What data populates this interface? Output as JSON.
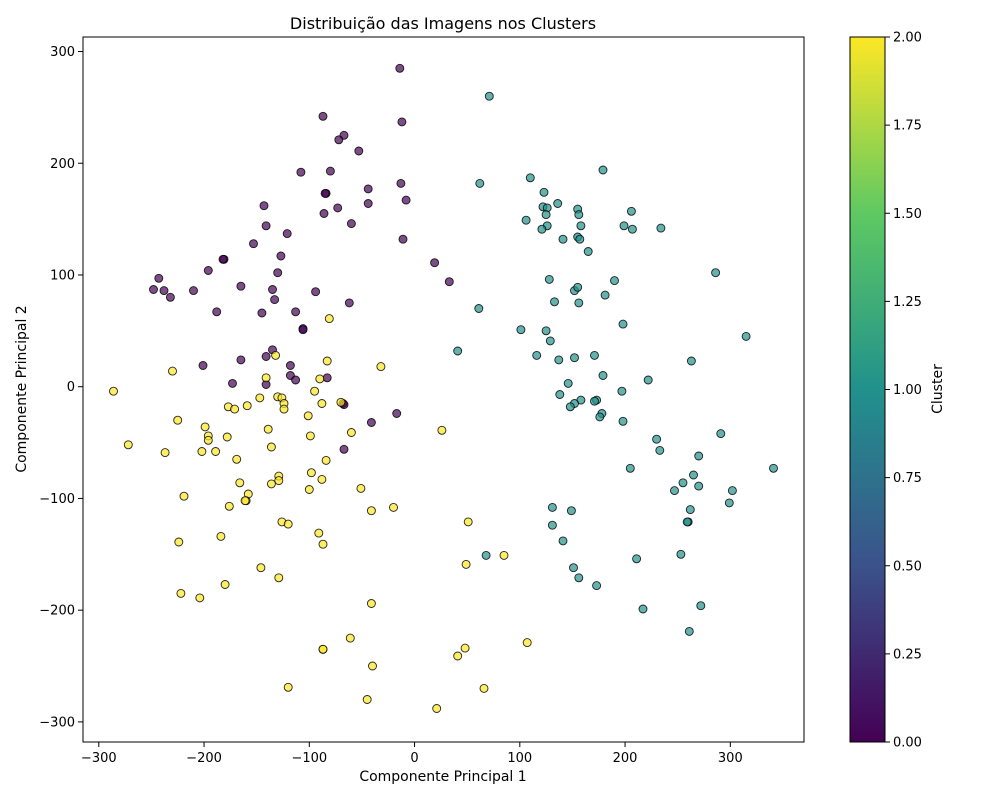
{
  "chart_data": {
    "type": "scatter",
    "title": "Distribuição das Imagens nos Clusters",
    "xlabel": "Componente Principal 1",
    "ylabel": "Componente Principal 2",
    "xlim": [
      -315,
      370
    ],
    "ylim": [
      -318,
      313
    ],
    "xticks": [
      -300,
      -200,
      -100,
      0,
      100,
      200,
      300
    ],
    "yticks": [
      -300,
      -200,
      -100,
      0,
      100,
      200,
      300
    ],
    "xtick_labels": [
      "−300",
      "−200",
      "−100",
      "0",
      "100",
      "200",
      "300"
    ],
    "ytick_labels": [
      "−300",
      "−200",
      "−100",
      "0",
      "100",
      "200",
      "300"
    ],
    "grid": false,
    "point_alpha": 0.7,
    "colorbar": {
      "label": "Cluster",
      "range": [
        0,
        2
      ],
      "ticks": [
        0.0,
        0.25,
        0.5,
        0.75,
        1.0,
        1.25,
        1.5,
        1.75,
        2.0
      ],
      "tick_labels": [
        "0.00",
        "0.25",
        "0.50",
        "0.75",
        "1.00",
        "1.25",
        "1.50",
        "1.75",
        "2.00"
      ],
      "colormap": "viridis",
      "colors": [
        "#440154",
        "#3b528b",
        "#21918c",
        "#5ec962",
        "#fde725"
      ]
    },
    "clusters": [
      {
        "cluster": 0,
        "color": "#440154",
        "points": [
          [
            -14,
            285
          ],
          [
            -87,
            242
          ],
          [
            -12,
            237
          ],
          [
            -67,
            225
          ],
          [
            -72,
            221
          ],
          [
            -53,
            211
          ],
          [
            -108,
            192
          ],
          [
            -80,
            193
          ],
          [
            -13,
            182
          ],
          [
            -44,
            177
          ],
          [
            -84,
            173
          ],
          [
            -85,
            173
          ],
          [
            -8,
            167
          ],
          [
            -44,
            164
          ],
          [
            -143,
            162
          ],
          [
            -73,
            160
          ],
          [
            -86,
            155
          ],
          [
            -60,
            146
          ],
          [
            -141,
            144
          ],
          [
            -121,
            137
          ],
          [
            -11,
            132
          ],
          [
            -153,
            128
          ],
          [
            -127,
            117
          ],
          [
            -181,
            114
          ],
          [
            -182,
            114
          ],
          [
            -196,
            104
          ],
          [
            -130,
            102
          ],
          [
            19,
            111
          ],
          [
            -243,
            97
          ],
          [
            33,
            94
          ],
          [
            -248,
            87
          ],
          [
            -238,
            86
          ],
          [
            -210,
            86
          ],
          [
            -165,
            90
          ],
          [
            -135,
            87
          ],
          [
            -94,
            85
          ],
          [
            -232,
            80
          ],
          [
            -133,
            78
          ],
          [
            -62,
            75
          ],
          [
            -188,
            67
          ],
          [
            -113,
            67
          ],
          [
            -145,
            66
          ],
          [
            -106,
            52
          ],
          [
            -106,
            51
          ],
          [
            -135,
            33
          ],
          [
            -141,
            27
          ],
          [
            -165,
            24
          ],
          [
            -201,
            19
          ],
          [
            -118,
            19
          ],
          [
            -118,
            10
          ],
          [
            -113,
            6
          ],
          [
            -83,
            8
          ],
          [
            -173,
            3
          ],
          [
            -141,
            2
          ],
          [
            -68,
            -15
          ],
          [
            -67,
            -16
          ],
          [
            -17,
            -24
          ],
          [
            -41,
            -32
          ],
          [
            -67,
            -56
          ]
        ]
      },
      {
        "cluster": 1,
        "color": "#21918c",
        "points": [
          [
            71,
            260
          ],
          [
            179,
            194
          ],
          [
            110,
            187
          ],
          [
            62,
            182
          ],
          [
            123,
            174
          ],
          [
            136,
            164
          ],
          [
            122,
            161
          ],
          [
            126,
            160
          ],
          [
            155,
            159
          ],
          [
            206,
            157
          ],
          [
            125,
            154
          ],
          [
            156,
            154
          ],
          [
            106,
            149
          ],
          [
            199,
            144
          ],
          [
            158,
            144
          ],
          [
            126,
            144
          ],
          [
            121,
            141
          ],
          [
            207,
            141
          ],
          [
            234,
            142
          ],
          [
            155,
            134
          ],
          [
            157,
            132
          ],
          [
            141,
            132
          ],
          [
            165,
            121
          ],
          [
            128,
            96
          ],
          [
            190,
            95
          ],
          [
            152,
            86
          ],
          [
            155,
            89
          ],
          [
            181,
            82
          ],
          [
            286,
            102
          ],
          [
            133,
            76
          ],
          [
            156,
            75
          ],
          [
            61,
            70
          ],
          [
            198,
            56
          ],
          [
            101,
            51
          ],
          [
            125,
            50
          ],
          [
            315,
            45
          ],
          [
            41,
            32
          ],
          [
            129,
            41
          ],
          [
            116,
            28
          ],
          [
            152,
            26
          ],
          [
            171,
            28
          ],
          [
            263,
            23
          ],
          [
            137,
            24
          ],
          [
            179,
            10
          ],
          [
            222,
            6
          ],
          [
            146,
            3
          ],
          [
            197,
            -4
          ],
          [
            138,
            -7
          ],
          [
            173,
            -12
          ],
          [
            158,
            -12
          ],
          [
            171,
            -13
          ],
          [
            152,
            -15
          ],
          [
            148,
            -18
          ],
          [
            178,
            -24
          ],
          [
            176,
            -27
          ],
          [
            198,
            -31
          ],
          [
            291,
            -42
          ],
          [
            230,
            -47
          ],
          [
            233,
            -57
          ],
          [
            270,
            -62
          ],
          [
            205,
            -73
          ],
          [
            341,
            -73
          ],
          [
            265,
            -79
          ],
          [
            270,
            -89
          ],
          [
            255,
            -86
          ],
          [
            247,
            -93
          ],
          [
            302,
            -93
          ],
          [
            299,
            -104
          ],
          [
            131,
            -108
          ],
          [
            149,
            -111
          ],
          [
            262,
            -110
          ],
          [
            260,
            -121
          ],
          [
            259,
            -121
          ],
          [
            131,
            -124
          ],
          [
            141,
            -138
          ],
          [
            68,
            -151
          ],
          [
            253,
            -150
          ],
          [
            211,
            -154
          ],
          [
            151,
            -162
          ],
          [
            156,
            -171
          ],
          [
            173,
            -178
          ],
          [
            217,
            -199
          ],
          [
            272,
            -196
          ],
          [
            261,
            -219
          ]
        ]
      },
      {
        "cluster": 2,
        "color": "#fde725",
        "points": [
          [
            -81,
            61
          ],
          [
            -132,
            28
          ],
          [
            -83,
            23
          ],
          [
            -32,
            18
          ],
          [
            -230,
            14
          ],
          [
            -141,
            8
          ],
          [
            -90,
            7
          ],
          [
            -286,
            -4
          ],
          [
            -95,
            -4
          ],
          [
            -130,
            -9
          ],
          [
            -147,
            -10
          ],
          [
            -126,
            -10
          ],
          [
            -124,
            -15
          ],
          [
            -177,
            -18
          ],
          [
            -171,
            -20
          ],
          [
            -159,
            -17
          ],
          [
            -88,
            -15
          ],
          [
            -124,
            -20
          ],
          [
            -70,
            -14
          ],
          [
            -225,
            -30
          ],
          [
            -199,
            -36
          ],
          [
            -101,
            -26
          ],
          [
            -139,
            -38
          ],
          [
            -196,
            -44
          ],
          [
            -196,
            -48
          ],
          [
            -60,
            -41
          ],
          [
            26,
            -39
          ],
          [
            -178,
            -45
          ],
          [
            -99,
            -44
          ],
          [
            -272,
            -52
          ],
          [
            -136,
            -54
          ],
          [
            -189,
            -58
          ],
          [
            -237,
            -59
          ],
          [
            -202,
            -58
          ],
          [
            -169,
            -65
          ],
          [
            -84,
            -66
          ],
          [
            -98,
            -77
          ],
          [
            -129,
            -80
          ],
          [
            -129,
            -84
          ],
          [
            -88,
            -83
          ],
          [
            -166,
            -86
          ],
          [
            -136,
            -87
          ],
          [
            -100,
            -92
          ],
          [
            -51,
            -91
          ],
          [
            -158,
            -96
          ],
          [
            -219,
            -98
          ],
          [
            -160,
            -102
          ],
          [
            -161,
            -102
          ],
          [
            -176,
            -107
          ],
          [
            -20,
            -108
          ],
          [
            -41,
            -111
          ],
          [
            -126,
            -121
          ],
          [
            -120,
            -123
          ],
          [
            51,
            -121
          ],
          [
            -91,
            -131
          ],
          [
            -184,
            -134
          ],
          [
            -224,
            -139
          ],
          [
            -87,
            -141
          ],
          [
            85,
            -151
          ],
          [
            49,
            -159
          ],
          [
            -146,
            -162
          ],
          [
            -129,
            -171
          ],
          [
            -180,
            -177
          ],
          [
            -222,
            -185
          ],
          [
            -204,
            -189
          ],
          [
            -41,
            -194
          ],
          [
            -61,
            -225
          ],
          [
            107,
            -229
          ],
          [
            -87,
            -235
          ],
          [
            -87,
            -235
          ],
          [
            48,
            -234
          ],
          [
            -40,
            -250
          ],
          [
            41,
            -241
          ],
          [
            -120,
            -269
          ],
          [
            66,
            -270
          ],
          [
            -45,
            -280
          ],
          [
            21,
            -288
          ]
        ]
      }
    ]
  }
}
